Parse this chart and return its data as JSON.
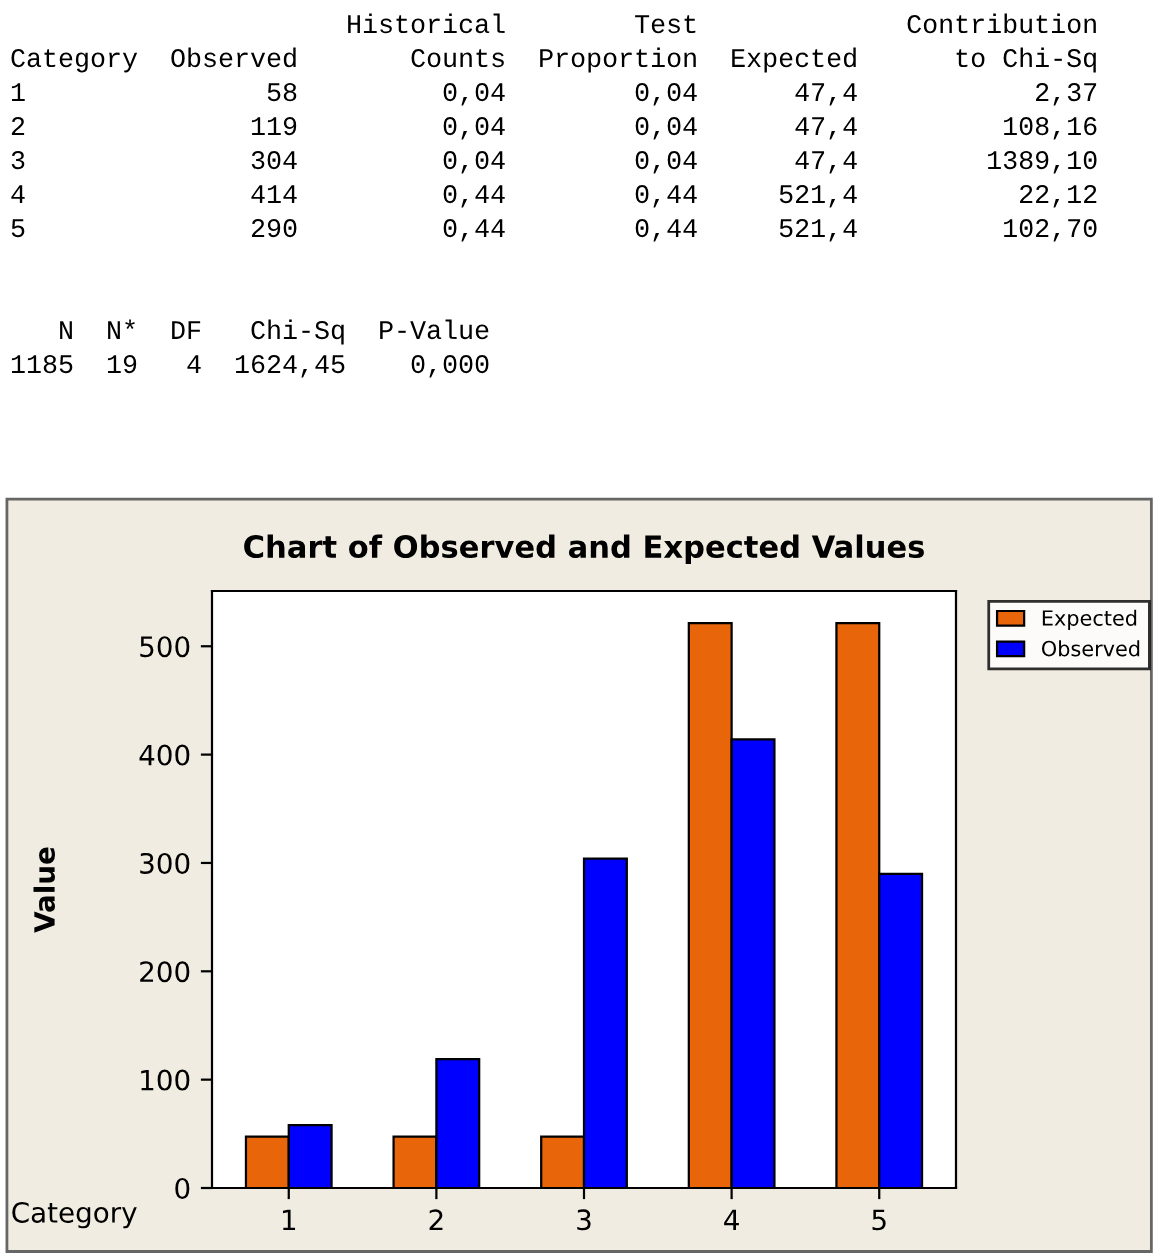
{
  "chart_data": {
    "type": "bar",
    "title": "Chart of Observed and Expected Values",
    "xlabel": "Category",
    "ylabel": "Value",
    "categories": [
      "1",
      "2",
      "3",
      "4",
      "5"
    ],
    "series": [
      {
        "name": "Expected",
        "color": "#e8650a",
        "values": [
          47.4,
          47.4,
          47.4,
          521.4,
          521.4
        ]
      },
      {
        "name": "Observed",
        "color": "#0000ff",
        "values": [
          58,
          119,
          304,
          414,
          290
        ]
      }
    ],
    "ylim": [
      0,
      551
    ],
    "yticks": [
      0,
      100,
      200,
      300,
      400,
      500
    ],
    "grid": false,
    "legend": "top right",
    "annotations": [
      "                     Historical        Test             Contribution",
      "Category  Observed       Counts  Proportion  Expected      to Chi-Sq",
      "1               58         0,04        0,04      47,4           2,37",
      "2              119         0,04        0,04      47,4         108,16",
      "3              304         0,04        0,04      47,4        1389,10",
      "4              414         0,44        0,44     521,4          22,12",
      "5              290         0,44        0,44     521,4         102,70",
      "   N  N*  DF   Chi-Sq  P-Value",
      "1185  19   4  1624,45    0,000"
    ]
  }
}
